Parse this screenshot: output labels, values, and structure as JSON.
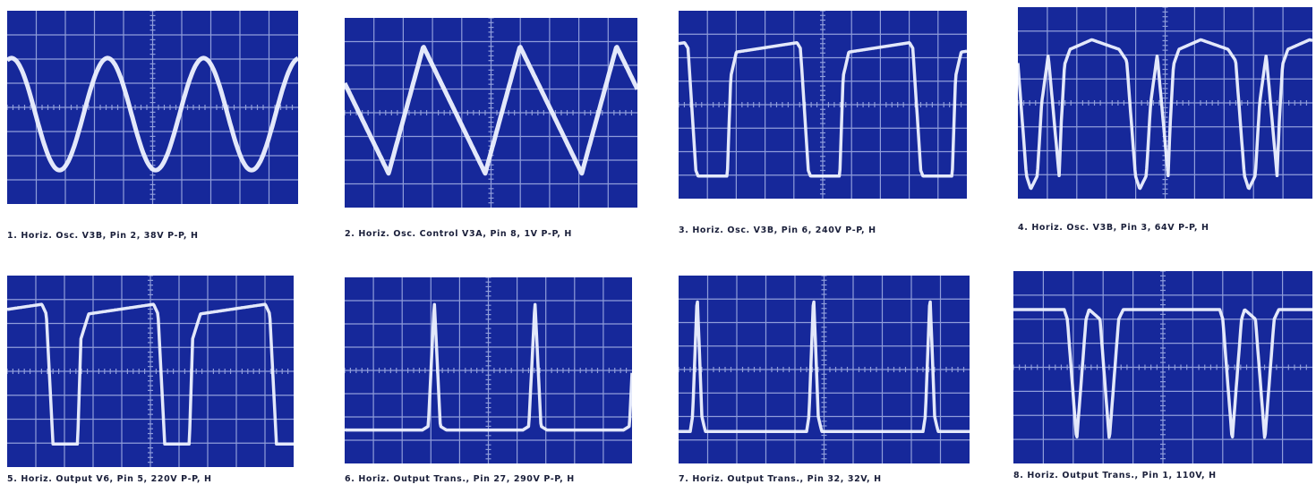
{
  "panels": [
    {
      "caption": "1. Horiz. Osc. V3B, Pin 2, 38V P-P, H"
    },
    {
      "caption": "2. Horiz. Osc. Control V3A, Pin 8, 1V P-P, H"
    },
    {
      "caption": "3. Horiz. Osc. V3B, Pin 6, 240V P-P, H"
    },
    {
      "caption": "4. Horiz. Osc. V3B, Pin 3, 64V P-P, H"
    },
    {
      "caption": "5. Horiz. Output V6, Pin 5, 220V P-P, H"
    },
    {
      "caption": "6. Horiz. Output Trans., Pin 27, 290V P-P, H"
    },
    {
      "caption": "7. Horiz. Output Trans., Pin 32, 32V, H"
    },
    {
      "caption": "8. Horiz. Output Trans., Pin 1, 110V, H"
    }
  ]
}
